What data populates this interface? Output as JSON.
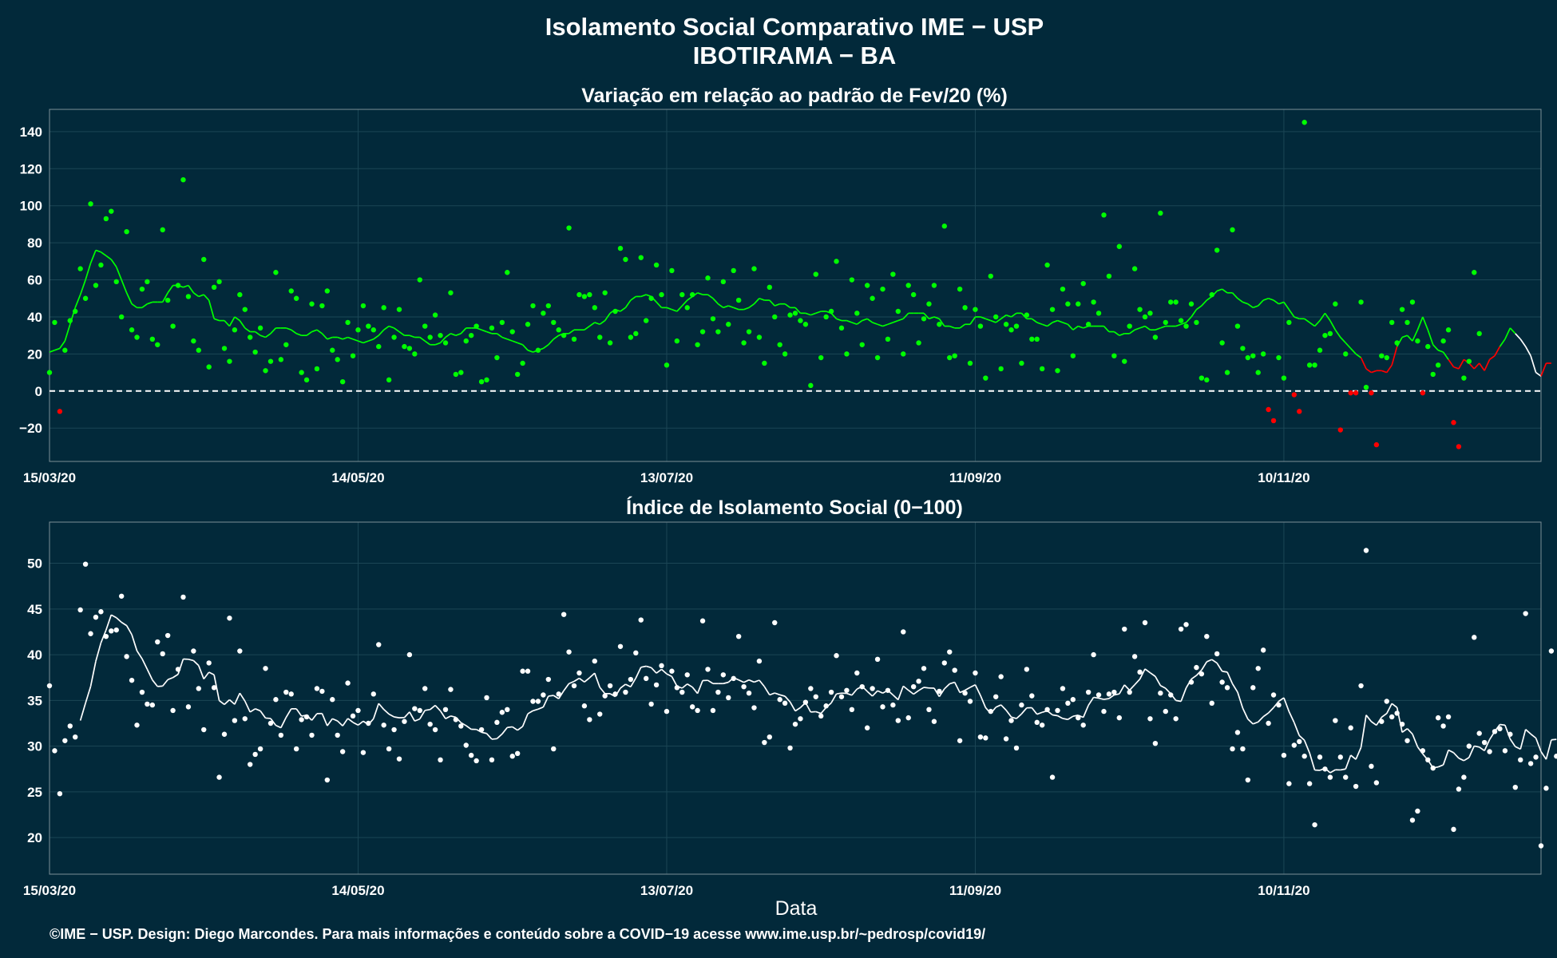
{
  "header": {
    "title": "Isolamento Social Comparativo IME − USP",
    "subtitle": "IBOTIRAMA − BA"
  },
  "footer": {
    "credit": "©IME − USP. Design: Diego Marcondes. Para mais informações e conteúdo sobre a COVID−19 acesse www.ime.usp.br/~pedrosp/covid19/"
  },
  "colors": {
    "background": "#02293a",
    "positive": "#00ff00",
    "negative": "#ff0000",
    "index": "#ffffff"
  },
  "chart_data": [
    {
      "type": "scatter",
      "title": "Variação em relação ao padrão de Fev/20 (%)",
      "xlabel": "",
      "ylabel": "",
      "x_range": [
        "2020-03-15",
        "2020-12-30"
      ],
      "x_ticks": [
        "15/03/20",
        "14/05/20",
        "13/07/20",
        "11/09/20",
        "10/11/20"
      ],
      "ylim": [
        -38,
        152
      ],
      "y_ticks": [
        -20,
        0,
        20,
        40,
        60,
        80,
        100,
        120,
        140
      ],
      "reference_line": 0,
      "start_date": "2020-03-15",
      "values": [
        10,
        37,
        -11,
        22,
        38,
        43,
        66,
        50,
        101,
        57,
        68,
        93,
        97,
        59,
        40,
        86,
        33,
        29,
        55,
        59,
        28,
        25,
        87,
        49,
        35,
        57,
        114,
        51,
        27,
        22,
        71,
        13,
        56,
        59,
        23,
        16,
        33,
        52,
        44,
        29,
        21,
        34,
        11,
        16,
        64,
        17,
        25,
        54,
        50,
        10,
        6,
        47,
        12,
        46,
        54,
        22,
        17,
        5,
        37,
        19,
        33,
        46,
        35,
        33,
        24,
        45,
        6,
        29,
        44,
        24,
        23,
        20,
        60,
        35,
        29,
        41,
        30,
        26,
        53,
        9,
        10,
        27,
        30,
        35,
        5,
        6,
        34,
        18,
        37,
        64,
        32,
        9,
        15,
        36,
        46,
        22,
        42,
        46,
        37,
        33,
        30,
        88,
        28,
        52,
        51,
        52,
        45,
        29,
        53,
        26,
        43,
        77,
        71,
        29,
        31,
        72,
        38,
        50,
        68,
        52,
        14,
        65,
        27,
        52,
        45,
        52,
        25,
        32,
        61,
        39,
        32,
        59,
        36,
        65,
        49,
        26,
        32,
        66,
        29,
        15,
        56,
        40,
        25,
        20,
        41,
        42,
        38,
        36,
        3,
        63,
        18,
        40,
        43,
        70,
        34,
        20,
        60,
        42,
        25,
        57,
        50,
        18,
        55,
        28,
        63,
        43,
        20,
        57,
        52,
        26,
        39,
        47,
        57,
        36,
        89,
        18,
        19,
        55,
        45,
        15,
        44,
        35,
        7,
        62,
        40,
        12,
        36,
        33,
        35,
        15,
        41,
        28,
        28,
        12,
        68,
        44,
        11,
        55,
        47,
        19,
        47,
        58,
        36,
        48,
        42,
        95,
        62,
        19,
        78,
        16,
        35,
        66,
        44,
        40,
        42,
        29,
        96,
        37,
        48,
        48,
        38,
        35,
        47,
        37,
        7,
        6,
        52,
        76,
        26,
        10,
        87,
        35,
        23,
        18,
        19,
        10,
        20,
        -10,
        -16,
        18,
        7,
        37,
        -2,
        -11,
        145,
        14,
        14,
        22,
        30,
        31,
        47,
        -21,
        20,
        -1,
        -1,
        48,
        2,
        -1,
        -29,
        19,
        18,
        37,
        26,
        44,
        37,
        48,
        27,
        -1,
        24,
        9,
        14,
        27,
        33,
        -17,
        -30,
        7,
        16,
        64,
        31
      ],
      "moving_average": [
        21,
        22,
        23,
        27,
        36,
        45,
        52,
        60,
        69,
        76,
        75,
        73,
        71,
        67,
        60,
        53,
        47,
        45,
        45,
        47,
        48,
        48,
        48,
        53,
        57,
        57,
        56,
        57,
        53,
        51,
        52,
        49,
        39,
        38,
        38,
        35,
        40,
        38,
        34,
        32,
        32,
        30,
        29,
        31,
        34,
        34,
        34,
        33,
        31,
        30,
        30,
        32,
        33,
        31,
        28,
        29,
        29,
        28,
        29,
        28,
        27,
        26,
        27,
        28,
        30,
        33,
        35,
        34,
        32,
        30,
        30,
        29,
        29,
        27,
        25,
        25,
        26,
        29,
        31,
        30,
        31,
        34,
        34,
        34,
        33,
        32,
        31,
        31,
        29,
        28,
        27,
        26,
        25,
        22,
        21,
        22,
        23,
        25,
        28,
        30,
        31,
        31,
        33,
        33,
        33,
        35,
        37,
        36,
        38,
        42,
        44,
        43,
        45,
        49,
        51,
        51,
        52,
        51,
        48,
        45,
        45,
        44,
        43,
        46,
        49,
        51,
        53,
        52,
        52,
        50,
        47,
        45,
        46,
        45,
        44,
        44,
        45,
        47,
        50,
        49,
        49,
        46,
        47,
        47,
        45,
        45,
        42,
        42,
        41,
        42,
        43,
        43,
        42,
        39,
        38,
        38,
        37,
        36,
        38,
        39,
        37,
        36,
        35,
        36,
        37,
        38,
        39,
        42,
        42,
        42,
        42,
        39,
        40,
        39,
        35,
        35,
        34,
        34,
        36,
        36,
        40,
        40,
        39,
        38,
        37,
        39,
        41,
        40,
        42,
        42,
        39,
        39,
        37,
        36,
        35,
        37,
        38,
        37,
        36,
        33,
        35,
        34,
        35,
        35,
        35,
        35,
        32,
        32,
        30,
        31,
        31,
        33,
        34,
        35,
        33,
        33,
        34,
        35,
        35,
        35,
        36,
        37,
        40,
        44,
        46,
        49,
        51,
        54,
        55,
        53,
        53,
        50,
        48,
        47,
        45,
        46,
        49,
        50,
        49,
        47,
        48,
        44,
        40,
        39,
        39,
        37,
        35,
        38,
        42,
        38,
        33,
        29,
        26,
        23,
        20,
        18,
        12,
        10,
        11,
        11,
        10,
        14,
        24,
        29,
        30,
        27,
        33,
        40,
        33,
        25,
        22,
        21,
        17,
        13,
        12,
        17,
        15,
        12,
        15,
        11,
        17,
        19,
        24,
        28,
        34,
        31,
        28,
        24,
        19,
        10,
        8,
        15,
        15
      ]
    },
    {
      "type": "scatter",
      "title": "Índice de Isolamento Social (0−100)",
      "xlabel": "Data",
      "ylabel": "",
      "x_range": [
        "2020-03-15",
        "2020-12-30"
      ],
      "x_ticks": [
        "15/03/20",
        "14/05/20",
        "13/07/20",
        "11/09/20",
        "10/11/20"
      ],
      "ylim": [
        16,
        54.5
      ],
      "y_ticks": [
        20,
        25,
        30,
        35,
        40,
        45,
        50
      ],
      "start_date": "2020-03-15",
      "values": [
        36.6,
        29.5,
        24.8,
        30.6,
        32.2,
        31.0,
        44.9,
        49.9,
        42.3,
        44.1,
        44.7,
        42.0,
        42.6,
        42.7,
        46.4,
        39.8,
        37.2,
        32.3,
        35.9,
        34.6,
        34.5,
        41.4,
        40.1,
        42.1,
        33.9,
        38.4,
        46.3,
        34.3,
        40.4,
        36.3,
        31.8,
        39.1,
        36.4,
        26.6,
        31.3,
        44.0,
        32.8,
        40.4,
        33.0,
        28.0,
        29.1,
        29.7,
        38.5,
        32.5,
        35.1,
        31.2,
        35.9,
        35.7,
        29.7,
        32.9,
        33.2,
        31.2,
        36.3,
        36.0,
        26.3,
        35.1,
        31.2,
        29.4,
        36.9,
        33.3,
        33.9,
        29.3,
        32.5,
        35.7,
        41.1,
        32.3,
        29.7,
        31.8,
        28.6,
        32.7,
        40.0,
        34.1,
        33.9,
        36.3,
        32.4,
        31.8,
        28.5,
        34.0,
        36.2,
        32.9,
        32.2,
        30.1,
        29.0,
        28.4,
        31.8,
        35.3,
        28.5,
        32.6,
        33.7,
        34.0,
        28.9,
        29.2,
        38.2,
        38.2,
        34.9,
        34.9,
        35.6,
        37.3,
        29.7,
        35.7,
        44.4,
        40.3,
        36.6,
        38.0,
        34.4,
        32.9,
        39.3,
        33.5,
        35.5,
        36.6,
        35.7,
        40.9,
        35.9,
        37.3,
        40.2,
        43.8,
        37.4,
        34.6,
        36.7,
        38.8,
        33.8,
        38.2,
        36.4,
        35.9,
        37.8,
        34.3,
        33.9,
        43.7,
        38.4,
        33.9,
        35.9,
        37.8,
        35.3,
        37.4,
        42.0,
        36.5,
        35.8,
        34.2,
        39.3,
        30.4,
        31.0,
        43.5,
        35.1,
        34.7,
        29.8,
        32.4,
        33.0,
        34.8,
        36.3,
        35.4,
        33.3,
        34.4,
        35.9,
        39.9,
        35.4,
        36.1,
        34.0,
        38.0,
        36.5,
        32.0,
        36.3,
        39.5,
        34.3,
        36.1,
        34.5,
        32.8,
        42.5,
        33.1,
        36.5,
        37.1,
        38.5,
        34.0,
        32.7,
        36.0,
        39.1,
        40.3,
        38.3,
        30.6,
        35.8,
        34.9,
        38.0,
        31.0,
        30.9,
        33.8,
        35.4,
        37.6,
        30.8,
        32.8,
        29.8,
        34.5,
        38.4,
        35.5,
        32.6,
        32.3,
        34.0,
        26.6,
        33.9,
        36.3,
        34.7,
        35.1,
        33.1,
        32.3,
        35.9,
        40.0,
        35.6,
        33.8,
        35.7,
        35.9,
        33.1,
        42.8,
        35.9,
        39.8,
        38.1,
        43.5,
        33.0,
        30.3,
        35.8,
        33.8,
        35.6,
        33.0,
        42.8,
        43.3,
        37.0,
        38.6,
        37.9,
        42.0,
        34.7,
        40.1,
        37.0,
        36.4,
        29.7,
        31.5,
        29.7,
        26.3,
        36.4,
        38.5,
        40.5,
        32.5,
        35.6,
        34.5,
        29.0,
        25.9,
        30.1,
        30.5,
        28.9,
        25.9,
        21.4,
        28.8,
        27.5,
        26.6,
        32.8,
        28.8,
        26.6,
        32.0,
        25.6,
        36.6,
        51.4,
        27.8,
        26.0,
        32.7,
        34.9,
        33.2,
        33.6,
        32.4,
        30.6,
        21.9,
        22.9,
        29.5,
        28.5,
        27.6,
        33.1,
        32.2,
        33.2,
        20.9,
        25.3,
        26.6,
        30.0,
        41.9,
        31.4,
        30.4,
        29.4,
        31.6,
        31.9,
        29.5,
        31.3,
        25.5,
        28.5,
        44.5,
        28.1,
        28.8,
        19.1,
        25.4,
        40.4,
        28.9
      ]
    }
  ]
}
